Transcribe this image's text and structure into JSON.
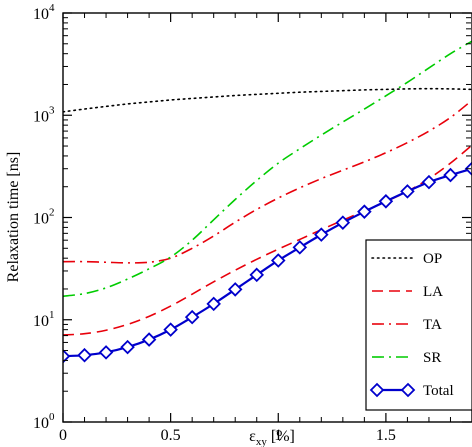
{
  "chart_data": {
    "type": "line",
    "xlabel_main": "ε",
    "xlabel_sub": "xy",
    "xlabel_unit": "[%]",
    "ylabel": "Relaxation time [ns]",
    "xlim": [
      0,
      1.9
    ],
    "ylim": [
      1,
      10000
    ],
    "y_scale": "log",
    "grid": false,
    "legend_placement": "bottom-right",
    "x_ticks": [
      {
        "value": 0,
        "label": "0"
      },
      {
        "value": 0.5,
        "label": "0.5"
      },
      {
        "value": 1,
        "label": "1"
      },
      {
        "value": 1.5,
        "label": "1.5"
      }
    ],
    "y_ticks": [
      {
        "value": 1,
        "base": "10",
        "exp": "0"
      },
      {
        "value": 10,
        "base": "10",
        "exp": "1"
      },
      {
        "value": 100,
        "base": "10",
        "exp": "2"
      },
      {
        "value": 1000,
        "base": "10",
        "exp": "3"
      },
      {
        "value": 10000,
        "base": "10",
        "exp": "4"
      }
    ],
    "series": [
      {
        "name": "OP",
        "color": "#000000",
        "dash": "dotted",
        "markers": false,
        "x": [
          0,
          0.1,
          0.2,
          0.3,
          0.4,
          0.5,
          0.6,
          0.7,
          0.8,
          0.9,
          1.0,
          1.1,
          1.2,
          1.3,
          1.4,
          1.5,
          1.6,
          1.7,
          1.8,
          1.9
        ],
        "y": [
          1080,
          1150,
          1220,
          1290,
          1350,
          1410,
          1460,
          1510,
          1560,
          1600,
          1640,
          1680,
          1710,
          1740,
          1770,
          1790,
          1810,
          1820,
          1810,
          1790
        ]
      },
      {
        "name": "LA",
        "color": "#e8000b",
        "dash": "dashed",
        "markers": false,
        "x": [
          0,
          0.1,
          0.2,
          0.3,
          0.4,
          0.5,
          0.6,
          0.7,
          0.8,
          0.9,
          1.0,
          1.1,
          1.2,
          1.3,
          1.4,
          1.5,
          1.6,
          1.7,
          1.8,
          1.9
        ],
        "y": [
          7.1,
          7.3,
          7.9,
          9.0,
          10.8,
          13.6,
          17.8,
          23.5,
          30.5,
          39,
          49,
          61,
          76,
          94,
          116,
          143,
          180,
          240,
          340,
          510
        ]
      },
      {
        "name": "TA",
        "color": "#e8000b",
        "dash": "dashdot",
        "markers": false,
        "x": [
          0,
          0.1,
          0.2,
          0.3,
          0.4,
          0.5,
          0.6,
          0.7,
          0.8,
          0.9,
          1.0,
          1.1,
          1.2,
          1.3,
          1.4,
          1.5,
          1.6,
          1.7,
          1.8,
          1.9
        ],
        "y": [
          37,
          37,
          36.5,
          36,
          36.5,
          40,
          50,
          66,
          90,
          120,
          155,
          195,
          240,
          290,
          350,
          430,
          540,
          700,
          950,
          1400
        ]
      },
      {
        "name": "SR",
        "color": "#00cc00",
        "dash": "dashdot",
        "markers": false,
        "x": [
          0,
          0.1,
          0.2,
          0.3,
          0.4,
          0.5,
          0.6,
          0.7,
          0.8,
          0.9,
          1.0,
          1.1,
          1.2,
          1.3,
          1.4,
          1.5,
          1.6,
          1.7,
          1.8,
          1.9
        ],
        "y": [
          17,
          18,
          20.5,
          25,
          31.5,
          41,
          60,
          95,
          150,
          230,
          340,
          470,
          640,
          860,
          1150,
          1550,
          2100,
          2900,
          4000,
          5300
        ]
      },
      {
        "name": "Total",
        "color": "#0000cc",
        "dash": "solid",
        "markers": true,
        "x": [
          0,
          0.1,
          0.2,
          0.3,
          0.4,
          0.5,
          0.6,
          0.7,
          0.8,
          0.9,
          1.0,
          1.1,
          1.2,
          1.3,
          1.4,
          1.5,
          1.6,
          1.7,
          1.8,
          1.9
        ],
        "y": [
          4.4,
          4.5,
          4.8,
          5.4,
          6.4,
          8.0,
          10.6,
          14.3,
          19.8,
          27.5,
          38,
          51,
          68,
          89,
          114,
          144,
          180,
          222,
          260,
          300
        ]
      }
    ]
  }
}
